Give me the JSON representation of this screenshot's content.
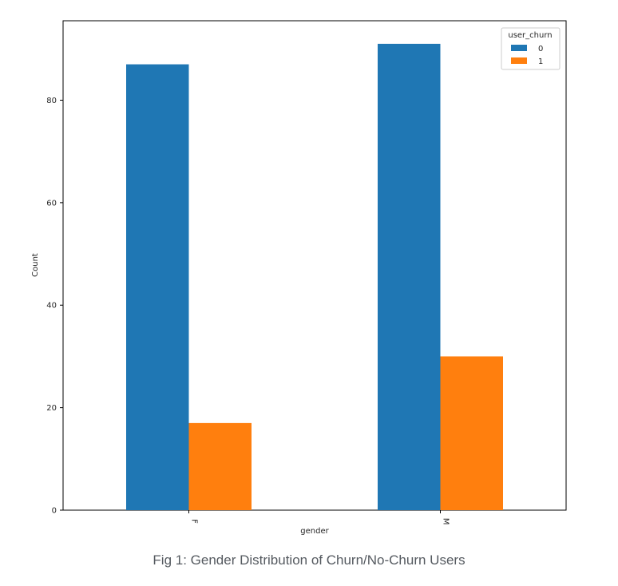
{
  "caption": "Fig 1: Gender Distribution of Churn/No-Churn Users",
  "colors": {
    "series_0": "#1f77b4",
    "series_1": "#ff7f0e",
    "axis": "#000000"
  },
  "chart_data": {
    "type": "bar",
    "categories": [
      "F",
      "M"
    ],
    "series": [
      {
        "name": "0",
        "values": [
          87,
          91
        ]
      },
      {
        "name": "1",
        "values": [
          17,
          30
        ]
      }
    ],
    "xlabel": "gender",
    "ylabel": "Count",
    "ylim": [
      0,
      95.5
    ],
    "yticks": [
      0,
      20,
      40,
      60,
      80
    ],
    "legend_title": "user_churn",
    "legend_position": "top-right",
    "grid": false
  }
}
